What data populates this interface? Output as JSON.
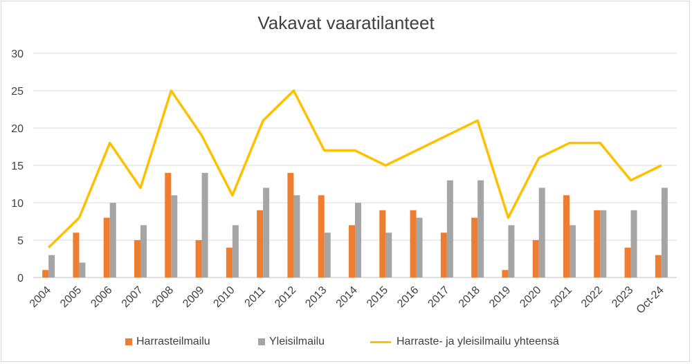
{
  "chart_data": {
    "type": "bar",
    "title": "Vakavat vaaratilanteet",
    "xlabel": "",
    "ylabel": "",
    "ylim": [
      0,
      30
    ],
    "yticks": [
      0,
      5,
      10,
      15,
      20,
      25,
      30
    ],
    "grid": true,
    "legend_position": "bottom",
    "categories": [
      "2004",
      "2005",
      "2006",
      "2007",
      "2008",
      "2009",
      "2010",
      "2011",
      "2012",
      "2013",
      "2014",
      "2015",
      "2016",
      "2017",
      "2018",
      "2019",
      "2020",
      "2021",
      "2022",
      "2023",
      "Oct-24"
    ],
    "series": [
      {
        "name": "Harrasteilmailu",
        "kind": "bar",
        "color": "#ed7d31",
        "values": [
          1,
          6,
          8,
          5,
          14,
          5,
          4,
          9,
          14,
          11,
          7,
          9,
          9,
          6,
          8,
          1,
          5,
          11,
          9,
          4,
          3
        ]
      },
      {
        "name": "Yleisilmailu",
        "kind": "bar",
        "color": "#a5a5a5",
        "values": [
          3,
          2,
          10,
          7,
          11,
          14,
          7,
          12,
          11,
          6,
          10,
          6,
          8,
          13,
          13,
          7,
          12,
          7,
          9,
          9,
          12
        ]
      },
      {
        "name": "Harraste- ja yleisilmailu yhteensä",
        "kind": "line",
        "color": "#ffc000",
        "values": [
          4,
          8,
          18,
          12,
          25,
          19,
          11,
          21,
          25,
          17,
          17,
          15,
          17,
          19,
          21,
          8,
          16,
          18,
          18,
          13,
          15
        ]
      }
    ]
  }
}
